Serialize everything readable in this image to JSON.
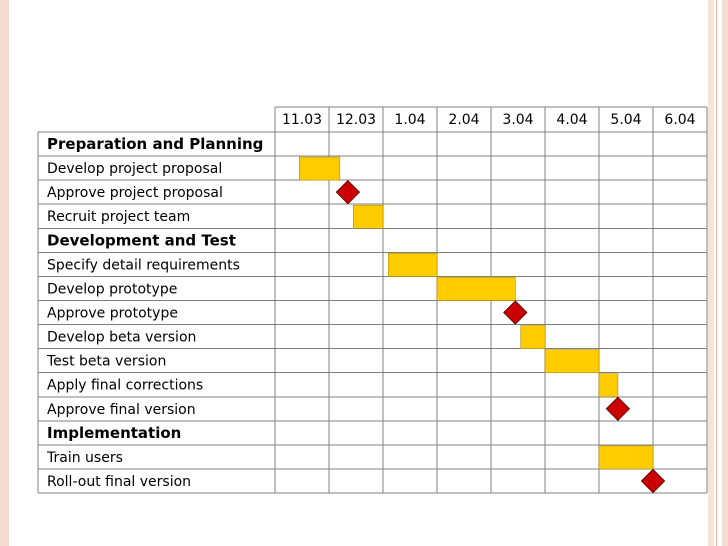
{
  "chart_data": {
    "type": "gantt",
    "columns": [
      "11.03",
      "12.03",
      "1.04",
      "2.04",
      "3.04",
      "4.04",
      "5.04",
      "6.04"
    ],
    "rows": [
      {
        "label": "Preparation and Planning",
        "kind": "section"
      },
      {
        "label": "Develop project proposal",
        "kind": "task",
        "start": 0.45,
        "end": 1.2
      },
      {
        "label": "Approve project proposal",
        "kind": "milestone",
        "at": 1.35
      },
      {
        "label": "Recruit project team",
        "kind": "task",
        "start": 1.45,
        "end": 2.0
      },
      {
        "label": "Development and Test",
        "kind": "section"
      },
      {
        "label": "Specify detail requirements",
        "kind": "task",
        "start": 2.1,
        "end": 3.0
      },
      {
        "label": "Develop prototype",
        "kind": "task",
        "start": 3.0,
        "end": 4.45
      },
      {
        "label": "Approve prototype",
        "kind": "milestone",
        "at": 4.45
      },
      {
        "label": "Develop beta version",
        "kind": "task",
        "start": 4.55,
        "end": 5.0
      },
      {
        "label": "Test beta version",
        "kind": "task",
        "start": 5.0,
        "end": 6.0
      },
      {
        "label": "Apply final corrections",
        "kind": "task",
        "start": 6.0,
        "end": 6.35
      },
      {
        "label": "Approve final version",
        "kind": "milestone",
        "at": 6.35
      },
      {
        "label": "Implementation",
        "kind": "section"
      },
      {
        "label": "Train users",
        "kind": "task",
        "start": 6.0,
        "end": 7.0
      },
      {
        "label": "Roll-out final version",
        "kind": "milestone",
        "at": 7.0
      }
    ],
    "colors": {
      "bar": "#ffcc00",
      "bar_border": "#b38f00",
      "milestone": "#cc0000",
      "milestone_border": "#660000",
      "grid": "#808080",
      "slide_accent": "#f5dbd1"
    }
  }
}
